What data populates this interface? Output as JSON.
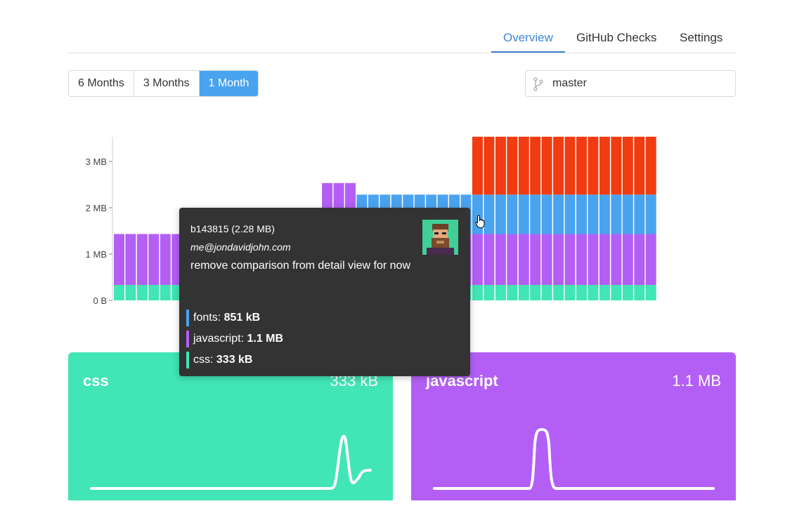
{
  "tabs": [
    {
      "label": "Overview",
      "active": true
    },
    {
      "label": "GitHub Checks",
      "active": false
    },
    {
      "label": "Settings",
      "active": false
    }
  ],
  "range": {
    "options": [
      "6 Months",
      "3 Months",
      "1 Month"
    ],
    "selected": "1 Month"
  },
  "branch": {
    "icon": "git-branch-icon",
    "value": "master"
  },
  "colors": {
    "css": "#42e5b5",
    "javascript": "#b35ff5",
    "fonts": "#4aa3ef",
    "other": "#f03c10",
    "active_tab": "#3e86d6"
  },
  "chart_data": {
    "type": "bar",
    "stacked": true,
    "y_ticks": [
      "0 B",
      "1 MB",
      "2 MB",
      "3 MB"
    ],
    "ylim_mb": [
      0,
      3.5
    ],
    "series_order": [
      "css",
      "javascript",
      "fonts",
      "other"
    ],
    "segments": [
      {
        "count": 18,
        "css": 0.333,
        "javascript": 1.1,
        "fonts": 0,
        "other": 0
      },
      {
        "count": 3,
        "css": 0.333,
        "javascript": 2.2,
        "fonts": 0,
        "other": 0
      },
      {
        "count": 10,
        "css": 0.333,
        "javascript": 1.1,
        "fonts": 0.851,
        "other": 0
      },
      {
        "count": 16,
        "css": 0.333,
        "javascript": 1.1,
        "fonts": 0.851,
        "other": 1.25
      }
    ],
    "grid": false
  },
  "tooltip": {
    "hash": "b143815 (2.28 MB)",
    "email": "me@jondavidjohn.com",
    "message": "remove comparison from detail view for now",
    "avatar": "avatar-icon",
    "rows": [
      {
        "name": "fonts",
        "value": "851 kB",
        "color": "#4aa3ef"
      },
      {
        "name": "javascript",
        "value": "1.1 MB",
        "color": "#b35ff5"
      },
      {
        "name": "css",
        "value": "333 kB",
        "color": "#42e5b5"
      }
    ]
  },
  "cards": [
    {
      "title": "css",
      "value": "333 kB"
    },
    {
      "title": "javascript",
      "value": "1.1 MB"
    }
  ]
}
